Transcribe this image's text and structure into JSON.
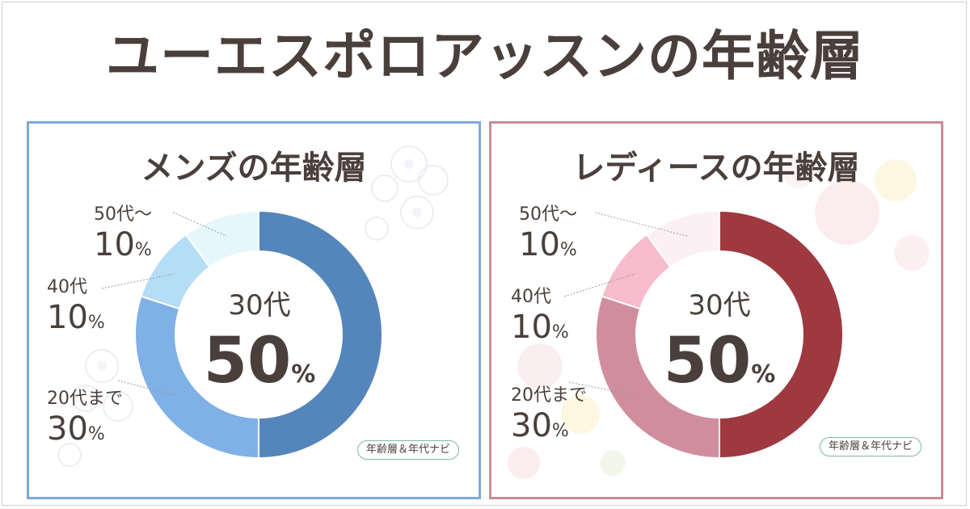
{
  "title": "ユーエスポロアッスンの年齢層",
  "badge_text": "年齢層＆年代ナビ",
  "chart_data": [
    {
      "type": "pie",
      "title": "メンズの年齢層",
      "categories": [
        "30代",
        "20代まで",
        "40代",
        "50代～"
      ],
      "values": [
        50,
        30,
        10,
        10
      ],
      "colors": [
        "#5586bb",
        "#7fb0e6",
        "#b5def6",
        "#e6f7fb"
      ],
      "labels": {
        "s50": {
          "age": "50代～",
          "pct": "10"
        },
        "s40": {
          "age": "40代",
          "pct": "10"
        },
        "s20": {
          "age": "20代まで",
          "pct": "30"
        },
        "s30": {
          "age": "30代",
          "pct": "50"
        }
      },
      "unit": "%"
    },
    {
      "type": "pie",
      "title": "レディースの年齢層",
      "categories": [
        "30代",
        "20代まで",
        "40代",
        "50代～"
      ],
      "values": [
        50,
        30,
        10,
        10
      ],
      "colors": [
        "#9e3940",
        "#d08e9c",
        "#f7bccb",
        "#fcf0f5"
      ],
      "labels": {
        "s50": {
          "age": "50代～",
          "pct": "10"
        },
        "s40": {
          "age": "40代",
          "pct": "10"
        },
        "s20": {
          "age": "20代まで",
          "pct": "30"
        },
        "s30": {
          "age": "30代",
          "pct": "50"
        }
      },
      "unit": "%"
    }
  ]
}
